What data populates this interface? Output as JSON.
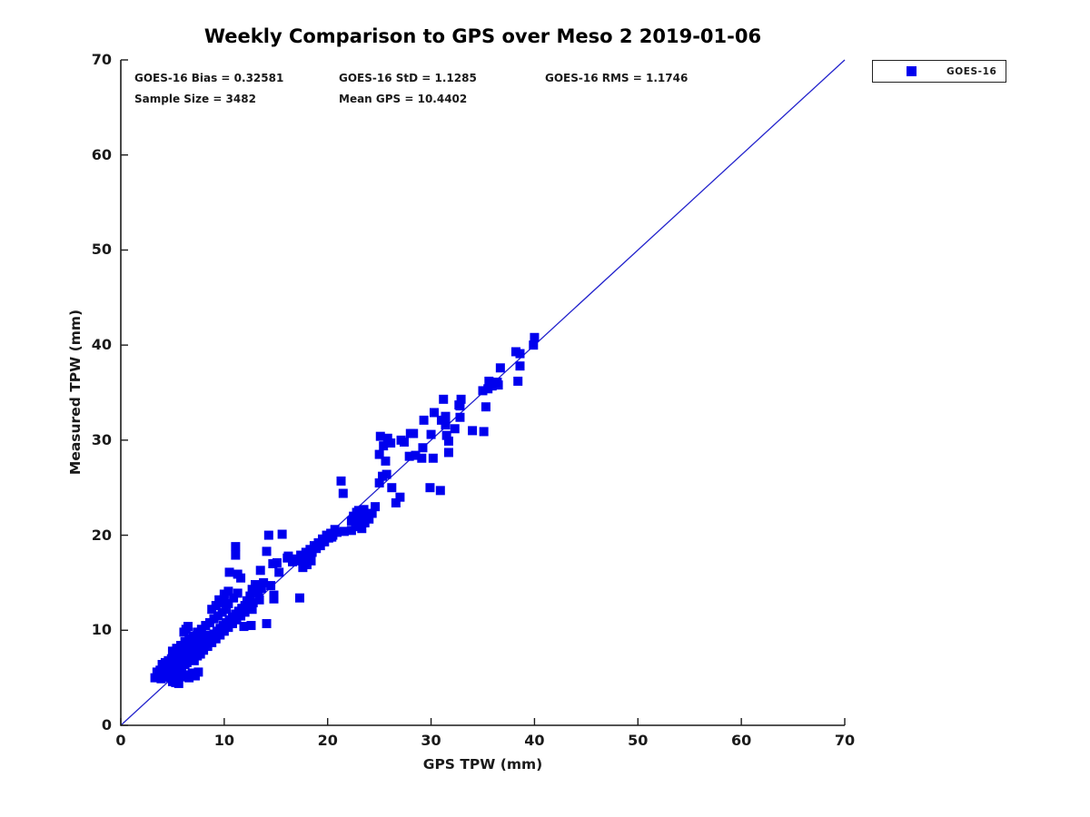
{
  "page": {
    "background": "#ffffff"
  },
  "chart_data": {
    "type": "scatter",
    "title": "Weekly Comparison to GPS over Meso 2 2019-01-06",
    "xlabel": "GPS TPW (mm)",
    "ylabel": "Measured TPW (mm)",
    "xlim": [
      0,
      70
    ],
    "ylim": [
      0,
      70
    ],
    "xticks": [
      0,
      10,
      20,
      30,
      40,
      50,
      60,
      70
    ],
    "yticks": [
      0,
      10,
      20,
      30,
      40,
      50,
      60,
      70
    ],
    "grid": false,
    "legend_position": "top-right-outside",
    "annotations": [
      "GOES-16 Bias = 0.32581",
      "GOES-16 StD = 1.1285",
      "GOES-16 RMS = 1.1746",
      "Sample Size = 3482",
      "Mean GPS = 10.4402"
    ],
    "stats": {
      "bias": 0.32581,
      "std": 1.1285,
      "rms": 1.1746,
      "sample_size": 3482,
      "mean_gps": 10.4402
    },
    "reference_line": {
      "x": [
        0,
        70
      ],
      "y": [
        0,
        70
      ],
      "color": "#2222cc"
    },
    "colors": {
      "axis": "#1a1a1a",
      "text": "#1a1a1a",
      "marker": "#0000ee"
    },
    "series": [
      {
        "name": "GOES-16",
        "marker": "square",
        "color": "#0000ee",
        "points": [
          [
            3.3,
            5.0
          ],
          [
            3.6,
            5.2
          ],
          [
            3.9,
            4.9
          ],
          [
            4.2,
            5.1
          ],
          [
            4.5,
            5.3
          ],
          [
            4.8,
            5.0
          ],
          [
            5.1,
            5.2
          ],
          [
            5.4,
            4.9
          ],
          [
            5.7,
            5.4
          ],
          [
            6.0,
            5.1
          ],
          [
            6.3,
            5.3
          ],
          [
            6.6,
            5.0
          ],
          [
            6.9,
            5.5
          ],
          [
            7.2,
            5.2
          ],
          [
            7.5,
            5.6
          ],
          [
            5.0,
            4.6
          ],
          [
            5.3,
            4.5
          ],
          [
            5.6,
            4.4
          ],
          [
            3.5,
            5.6
          ],
          [
            3.8,
            5.8
          ],
          [
            4.1,
            6.0
          ],
          [
            4.4,
            5.7
          ],
          [
            4.7,
            6.1
          ],
          [
            5.0,
            6.3
          ],
          [
            5.3,
            6.0
          ],
          [
            5.6,
            6.5
          ],
          [
            5.9,
            6.7
          ],
          [
            6.2,
            6.4
          ],
          [
            6.5,
            6.9
          ],
          [
            6.8,
            7.1
          ],
          [
            7.1,
            6.8
          ],
          [
            7.4,
            7.3
          ],
          [
            7.7,
            7.5
          ],
          [
            4.0,
            6.4
          ],
          [
            4.3,
            6.6
          ],
          [
            4.6,
            6.8
          ],
          [
            4.9,
            7.0
          ],
          [
            5.2,
            7.2
          ],
          [
            5.5,
            7.4
          ],
          [
            5.8,
            7.6
          ],
          [
            6.1,
            7.8
          ],
          [
            6.4,
            8.0
          ],
          [
            6.7,
            8.2
          ],
          [
            7.0,
            8.5
          ],
          [
            7.3,
            8.7
          ],
          [
            7.6,
            9.0
          ],
          [
            7.9,
            9.2
          ],
          [
            8.2,
            9.5
          ],
          [
            5.0,
            7.8
          ],
          [
            5.4,
            8.1
          ],
          [
            5.8,
            8.4
          ],
          [
            6.2,
            8.8
          ],
          [
            6.6,
            9.1
          ],
          [
            7.0,
            9.4
          ],
          [
            7.4,
            9.8
          ],
          [
            7.8,
            10.1
          ],
          [
            8.2,
            10.5
          ],
          [
            8.6,
            10.8
          ],
          [
            9.0,
            11.2
          ],
          [
            9.4,
            11.5
          ],
          [
            9.8,
            11.9
          ],
          [
            10.2,
            12.2
          ],
          [
            6.1,
            9.8
          ],
          [
            6.3,
            10.1
          ],
          [
            6.5,
            10.4
          ],
          [
            6.0,
            6.6
          ],
          [
            6.3,
            6.9
          ],
          [
            6.6,
            7.2
          ],
          [
            6.9,
            7.5
          ],
          [
            7.2,
            7.8
          ],
          [
            7.5,
            8.1
          ],
          [
            7.8,
            8.4
          ],
          [
            8.1,
            8.7
          ],
          [
            8.4,
            9.0
          ],
          [
            8.7,
            9.3
          ],
          [
            9.0,
            9.6
          ],
          [
            9.3,
            9.9
          ],
          [
            9.6,
            10.2
          ],
          [
            9.9,
            10.5
          ],
          [
            10.2,
            10.8
          ],
          [
            10.5,
            11.1
          ],
          [
            10.8,
            11.4
          ],
          [
            11.1,
            11.7
          ],
          [
            11.4,
            12.0
          ],
          [
            11.7,
            12.3
          ],
          [
            12.0,
            12.6
          ],
          [
            7.6,
            7.5
          ],
          [
            8.0,
            7.9
          ],
          [
            8.4,
            8.3
          ],
          [
            8.8,
            8.7
          ],
          [
            9.2,
            9.1
          ],
          [
            9.6,
            9.5
          ],
          [
            10.0,
            9.9
          ],
          [
            10.4,
            10.3
          ],
          [
            10.8,
            10.7
          ],
          [
            11.2,
            11.1
          ],
          [
            11.6,
            11.5
          ],
          [
            12.0,
            11.9
          ],
          [
            12.4,
            12.3
          ],
          [
            8.8,
            12.2
          ],
          [
            9.2,
            12.6
          ],
          [
            9.6,
            12.9
          ],
          [
            10.0,
            13.3
          ],
          [
            10.4,
            12.8
          ],
          [
            10.9,
            13.4
          ],
          [
            9.5,
            13.2
          ],
          [
            11.3,
            13.9
          ],
          [
            5.2,
            5.8
          ],
          [
            5.9,
            6.2
          ],
          [
            6.4,
            6.6
          ],
          [
            7.0,
            7.2
          ],
          [
            7.7,
            8.0
          ],
          [
            8.3,
            8.6
          ],
          [
            8.9,
            9.4
          ],
          [
            9.4,
            9.8
          ],
          [
            4.6,
            5.5
          ],
          [
            4.3,
            5.4
          ],
          [
            3.7,
            5.4
          ],
          [
            6.7,
            7.7
          ],
          [
            12.2,
            13.1
          ],
          [
            12.5,
            13.6
          ],
          [
            12.8,
            12.9
          ],
          [
            13.1,
            13.9
          ],
          [
            13.4,
            13.2
          ],
          [
            12.7,
            14.3
          ],
          [
            13.0,
            14.8
          ],
          [
            13.6,
            14.4
          ],
          [
            12.7,
            12.2
          ],
          [
            13.8,
            15.0
          ],
          [
            13.3,
            14.0
          ],
          [
            14.5,
            14.7
          ],
          [
            14.8,
            13.7
          ],
          [
            11.1,
            18.8
          ],
          [
            11.1,
            17.9
          ],
          [
            10.5,
            16.1
          ],
          [
            11.6,
            15.5
          ],
          [
            11.3,
            15.9
          ],
          [
            10.4,
            14.1
          ],
          [
            10.0,
            13.8
          ],
          [
            14.3,
            20.0
          ],
          [
            15.6,
            20.1
          ],
          [
            14.1,
            18.3
          ],
          [
            16.2,
            17.8
          ],
          [
            14.7,
            17.0
          ],
          [
            15.3,
            16.1
          ],
          [
            15.1,
            17.1
          ],
          [
            16.1,
            17.6
          ],
          [
            13.5,
            16.3
          ],
          [
            11.9,
            10.4
          ],
          [
            12.6,
            10.5
          ],
          [
            14.1,
            10.7
          ],
          [
            17.3,
            13.4
          ],
          [
            14.8,
            13.3
          ],
          [
            16.6,
            17.2
          ],
          [
            16.9,
            17.5
          ],
          [
            17.2,
            17.3
          ],
          [
            17.4,
            17.9
          ],
          [
            17.7,
            17.6
          ],
          [
            17.9,
            18.2
          ],
          [
            18.1,
            17.9
          ],
          [
            18.3,
            18.5
          ],
          [
            18.5,
            18.2
          ],
          [
            18.7,
            18.9
          ],
          [
            18.9,
            18.6
          ],
          [
            19.1,
            19.2
          ],
          [
            19.3,
            18.9
          ],
          [
            19.5,
            19.6
          ],
          [
            19.7,
            19.3
          ],
          [
            19.9,
            20.0
          ],
          [
            20.1,
            19.7
          ],
          [
            20.3,
            20.2
          ],
          [
            20.5,
            20.0
          ],
          [
            20.7,
            20.6
          ],
          [
            20.9,
            20.3
          ],
          [
            17.6,
            16.6
          ],
          [
            18.0,
            16.9
          ],
          [
            18.4,
            17.3
          ],
          [
            21.3,
            25.7
          ],
          [
            21.5,
            24.4
          ],
          [
            20.4,
            19.8
          ],
          [
            21.6,
            20.4
          ],
          [
            22.3,
            20.5
          ],
          [
            22.3,
            21.5
          ],
          [
            22.5,
            22.0
          ],
          [
            22.7,
            21.2
          ],
          [
            22.8,
            22.4
          ],
          [
            23.0,
            21.8
          ],
          [
            23.0,
            22.6
          ],
          [
            23.2,
            21.4
          ],
          [
            23.2,
            22.2
          ],
          [
            23.4,
            21.9
          ],
          [
            23.5,
            22.7
          ],
          [
            23.6,
            21.3
          ],
          [
            23.8,
            22.1
          ],
          [
            24.0,
            21.7
          ],
          [
            22.9,
            20.9
          ],
          [
            23.3,
            20.7
          ],
          [
            24.3,
            22.3
          ],
          [
            24.6,
            23.0
          ],
          [
            25.3,
            26.2
          ],
          [
            25.7,
            26.4
          ],
          [
            25.6,
            27.8
          ],
          [
            26.6,
            23.4
          ],
          [
            27.0,
            24.0
          ],
          [
            25.0,
            25.5
          ],
          [
            26.2,
            25.0
          ],
          [
            25.1,
            30.4
          ],
          [
            25.0,
            28.5
          ],
          [
            25.4,
            29.4
          ],
          [
            25.8,
            30.2
          ],
          [
            26.1,
            29.7
          ],
          [
            27.4,
            29.8
          ],
          [
            28.3,
            30.7
          ],
          [
            29.3,
            32.1
          ],
          [
            30.3,
            32.9
          ],
          [
            27.1,
            30.0
          ],
          [
            28.0,
            30.7
          ],
          [
            30.0,
            30.6
          ],
          [
            27.9,
            28.3
          ],
          [
            28.5,
            28.4
          ],
          [
            29.2,
            29.2
          ],
          [
            29.1,
            28.1
          ],
          [
            30.2,
            28.1
          ],
          [
            31.7,
            28.7
          ],
          [
            31.5,
            30.5
          ],
          [
            31.4,
            31.6
          ],
          [
            32.3,
            31.2
          ],
          [
            31.7,
            29.9
          ],
          [
            29.9,
            25.0
          ],
          [
            30.9,
            24.7
          ],
          [
            31.0,
            32.1
          ],
          [
            31.4,
            32.5
          ],
          [
            31.2,
            34.3
          ],
          [
            32.9,
            34.3
          ],
          [
            32.7,
            33.7
          ],
          [
            32.8,
            33.6
          ],
          [
            32.8,
            32.4
          ],
          [
            34.0,
            31.0
          ],
          [
            35.1,
            30.9
          ],
          [
            35.3,
            33.5
          ],
          [
            35.0,
            35.2
          ],
          [
            35.5,
            35.4
          ],
          [
            35.9,
            35.7
          ],
          [
            36.4,
            36.1
          ],
          [
            36.5,
            35.8
          ],
          [
            35.6,
            36.2
          ],
          [
            36.7,
            37.6
          ],
          [
            38.2,
            39.3
          ],
          [
            38.6,
            39.1
          ],
          [
            38.6,
            37.8
          ],
          [
            38.4,
            36.2
          ],
          [
            39.9,
            40.0
          ],
          [
            40.0,
            40.8
          ]
        ]
      }
    ]
  }
}
